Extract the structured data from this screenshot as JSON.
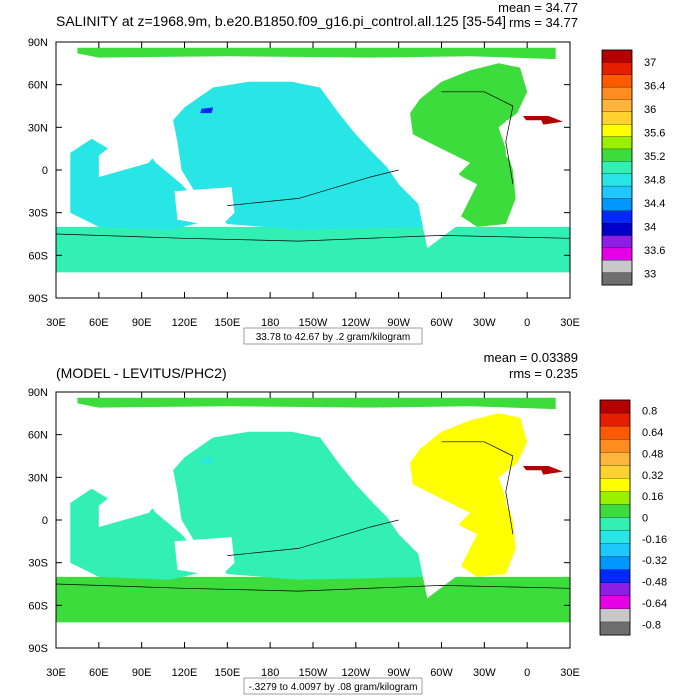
{
  "colors": {
    "land": "#ffffff",
    "border": "#000000",
    "contour": "#000000"
  },
  "chart_data": [
    {
      "type": "heatmap",
      "title": "SALINITY at z=1968.9m, b.e20.B1850.f09_g16.pi_control.all.125 [35-54]",
      "mean_label": "mean = 34.77",
      "rms_label": "rms = 34.77",
      "x_ticks": [
        "30E",
        "60E",
        "90E",
        "120E",
        "150E",
        "180",
        "150W",
        "120W",
        "90W",
        "60W",
        "30W",
        "0",
        "30E"
      ],
      "y_ticks": [
        "90N",
        "60N",
        "30N",
        "0",
        "30S",
        "60S",
        "90S"
      ],
      "xlim": [
        30,
        390
      ],
      "ylim": [
        -90,
        90
      ],
      "range_label": "33.78 to 42.67 by .2 gram/kilogram",
      "colorbar": {
        "labels": [
          "37",
          "36.4",
          "36",
          "35.6",
          "35.2",
          "34.8",
          "34.4",
          "34",
          "33.6",
          "33"
        ],
        "colors": [
          "#b40000",
          "#e61e00",
          "#ff5a00",
          "#ff8c1e",
          "#ffb43c",
          "#ffd232",
          "#ffff00",
          "#9bf000",
          "#3cdc3c",
          "#32f0b4",
          "#28e6e6",
          "#1ec8ff",
          "#0096ff",
          "#0028ff",
          "#0000c8",
          "#8c1ee6",
          "#e600e6",
          "#c8c8c8",
          "#6e6e6e"
        ]
      },
      "field": {
        "pacific": "#28e6e6",
        "indian": "#28e6e6",
        "atlantic": "#3cdc3c",
        "southern": "#32f0b4",
        "arctic": "#3cdc3c",
        "med": "#b40000",
        "patch": "#0028ff"
      }
    },
    {
      "type": "heatmap",
      "title": "(MODEL - LEVITUS/PHC2)",
      "mean_label": "mean = 0.03389",
      "rms_label": "rms = 0.235",
      "x_ticks": [
        "30E",
        "60E",
        "90E",
        "120E",
        "150E",
        "180",
        "150W",
        "120W",
        "90W",
        "60W",
        "30W",
        "0",
        "30E"
      ],
      "y_ticks": [
        "90N",
        "60N",
        "30N",
        "0",
        "30S",
        "60S",
        "90S"
      ],
      "xlim": [
        30,
        390
      ],
      "ylim": [
        -90,
        90
      ],
      "range_label": "-.3279 to 4.0097 by .08 gram/kilogram",
      "colorbar": {
        "labels": [
          "0.8",
          "0.64",
          "0.48",
          "0.32",
          "0.16",
          "0",
          "-0.16",
          "-0.32",
          "-0.48",
          "-0.64",
          "-0.8"
        ],
        "colors": [
          "#b40000",
          "#e61e00",
          "#ff5a00",
          "#ff8c1e",
          "#ffb43c",
          "#ffd232",
          "#ffff00",
          "#9bf000",
          "#3cdc3c",
          "#32f0b4",
          "#28e6e6",
          "#1ec8ff",
          "#0096ff",
          "#0028ff",
          "#8c1ee6",
          "#e600e6",
          "#c8c8c8",
          "#6e6e6e"
        ]
      },
      "field": {
        "pacific": "#32f0b4",
        "indian": "#32f0b4",
        "atlantic": "#ffff00",
        "southern": "#3cdc3c",
        "arctic": "#3cdc3c",
        "med": "#b40000",
        "patch": "#28e6e6"
      }
    }
  ]
}
